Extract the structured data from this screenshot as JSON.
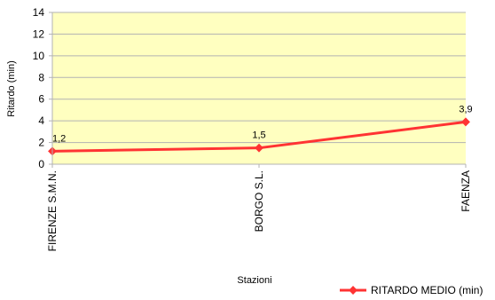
{
  "chart_data": {
    "type": "line",
    "title": "",
    "xlabel": "Stazioni",
    "ylabel": "Ritardo (min)",
    "ylim": [
      0,
      14
    ],
    "yticks": [
      0,
      2,
      4,
      6,
      8,
      10,
      12,
      14
    ],
    "grid": true,
    "legend_position": "bottom-right",
    "plot_background": "#FFFFC0",
    "categories": [
      "FIRENZE S.M.N.",
      "BORGO S.L.",
      "FAENZA"
    ],
    "series": [
      {
        "name": "RITARDO MEDIO (min)",
        "values": [
          1.2,
          1.5,
          3.9
        ],
        "value_labels": [
          "1,2",
          "1,5",
          "3,9"
        ],
        "color": "#FF3333"
      }
    ]
  }
}
